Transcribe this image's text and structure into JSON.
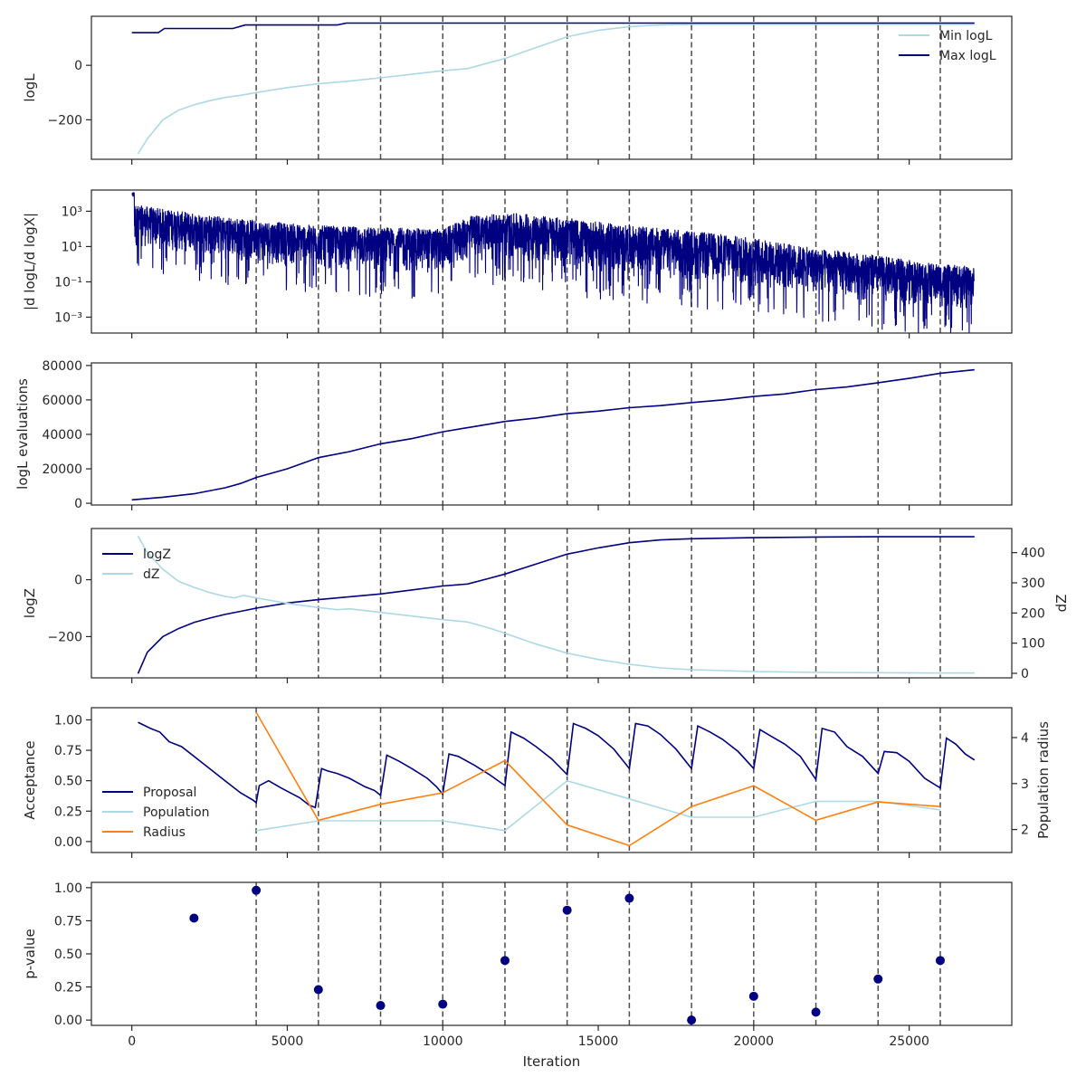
{
  "colors": {
    "navy": "#000080",
    "lightblue": "#add8e6",
    "orange": "#ff7f0e",
    "vline": "#4d4d4d"
  },
  "shared_x": {
    "label": "Iteration",
    "lim": [
      -1300,
      28300
    ],
    "ticks": [
      0,
      5000,
      10000,
      15000,
      20000,
      25000
    ],
    "tick_labels": [
      "0",
      "5000",
      "10000",
      "15000",
      "20000",
      "25000"
    ]
  },
  "vertical_lines": [
    4000,
    6000,
    8000,
    10000,
    12000,
    14000,
    16000,
    18000,
    20000,
    22000,
    24000,
    26000
  ],
  "chart_data": [
    {
      "type": "line",
      "ylabel": "logL",
      "ylim": [
        -345,
        180
      ],
      "yticks": [
        -200,
        0
      ],
      "ytick_labels": [
        "−200",
        "0"
      ],
      "legend": "top-right",
      "series": [
        {
          "name": "Min logL",
          "color": "#add8e6",
          "x": [
            200,
            500,
            1000,
            1500,
            2000,
            2500,
            3000,
            3500,
            4000,
            5000,
            6000,
            7000,
            8000,
            9000,
            10000,
            10800,
            11500,
            12000,
            13000,
            14000,
            15000,
            16000,
            17000,
            18000,
            20000,
            22000,
            24000,
            26000,
            27100
          ],
          "y": [
            -325,
            -270,
            -200,
            -165,
            -145,
            -130,
            -118,
            -110,
            -100,
            -82,
            -68,
            -58,
            -46,
            -33,
            -20,
            -12,
            10,
            25,
            65,
            105,
            128,
            142,
            148,
            150,
            150,
            150,
            150,
            150,
            150
          ]
        },
        {
          "name": "Max logL",
          "color": "#000080",
          "x": [
            0,
            850,
            1050,
            3250,
            3650,
            6600,
            6900,
            27100
          ],
          "y": [
            120,
            120,
            135,
            135,
            148,
            148,
            155,
            155
          ]
        }
      ]
    },
    {
      "type": "line",
      "ylabel": "|d logL/d logX|",
      "yscale": "log",
      "ylim": [
        -3.9,
        4.2
      ],
      "yticks": [
        -3,
        -1,
        1,
        3
      ],
      "ytick_labels": [
        "10⁻³",
        "10⁻¹",
        "10¹",
        "10³"
      ],
      "series": [
        {
          "name": "",
          "color": "#000080",
          "band_x": [
            0,
            2000,
            4000,
            6000,
            8000,
            10000,
            11000,
            12500,
            14000,
            16000,
            18000,
            20000,
            22000,
            24000,
            26000,
            27100
          ],
          "band_upper_log10": [
            3.4,
            2.9,
            2.5,
            2.2,
            2.1,
            2.0,
            2.8,
            2.9,
            2.6,
            2.2,
            1.9,
            1.5,
            0.9,
            0.5,
            0.0,
            -0.1
          ],
          "band_lower_log10": [
            1.0,
            0.5,
            0.0,
            -0.3,
            -0.5,
            -0.6,
            0.2,
            0.1,
            -0.3,
            -0.7,
            -1.0,
            -1.4,
            -1.8,
            -2.2,
            -2.6,
            -2.7
          ]
        }
      ]
    },
    {
      "type": "line",
      "ylabel": "logL evaluations",
      "ylim": [
        -1000,
        81500
      ],
      "yticks": [
        0,
        20000,
        40000,
        60000,
        80000
      ],
      "ytick_labels": [
        "0",
        "20000",
        "40000",
        "60000",
        "80000"
      ],
      "series": [
        {
          "name": "",
          "color": "#000080",
          "x": [
            0,
            1000,
            2000,
            3000,
            3500,
            4000,
            5000,
            6000,
            7000,
            8000,
            9000,
            10000,
            11000,
            12000,
            13000,
            14000,
            15000,
            16000,
            17000,
            18000,
            19000,
            20000,
            21000,
            22000,
            23000,
            24000,
            25000,
            26000,
            27100
          ],
          "y": [
            2000,
            3500,
            5500,
            9000,
            11500,
            15000,
            20000,
            26500,
            30000,
            34500,
            37500,
            41500,
            44500,
            47500,
            49500,
            52000,
            53500,
            55500,
            56700,
            58500,
            60000,
            62000,
            63500,
            66000,
            67500,
            70000,
            72500,
            75500,
            77500
          ]
        }
      ]
    },
    {
      "type": "line",
      "ylabel": "logZ",
      "ylabel_right": "dZ",
      "ylim": [
        -345,
        180
      ],
      "yticks": [
        -200,
        0
      ],
      "ytick_labels": [
        "−200",
        "0"
      ],
      "ylim_right": [
        -15,
        480
      ],
      "yticks_right": [
        0,
        100,
        200,
        300,
        400
      ],
      "ytick_labels_right": [
        "0",
        "100",
        "200",
        "300",
        "400"
      ],
      "legend": "top-left",
      "series": [
        {
          "name": "logZ",
          "color": "#000080",
          "axis": "left",
          "x": [
            200,
            500,
            1000,
            1500,
            2000,
            2500,
            3000,
            3500,
            4000,
            5000,
            6000,
            7000,
            8000,
            9000,
            10000,
            10800,
            11500,
            12000,
            13000,
            14000,
            15000,
            16000,
            17000,
            18000,
            20000,
            22000,
            24000,
            26000,
            27100
          ],
          "y": [
            -330,
            -255,
            -200,
            -172,
            -150,
            -135,
            -122,
            -111,
            -100,
            -82,
            -70,
            -60,
            -50,
            -36,
            -22,
            -15,
            5,
            20,
            55,
            90,
            112,
            130,
            140,
            144,
            148,
            150,
            151,
            151,
            151
          ]
        },
        {
          "name": "dZ",
          "color": "#add8e6",
          "axis": "right",
          "x": [
            200,
            500,
            1000,
            1500,
            2000,
            2500,
            3000,
            3300,
            3600,
            4000,
            5000,
            6000,
            6600,
            7000,
            8000,
            9000,
            10000,
            10800,
            11500,
            12000,
            13000,
            14000,
            15000,
            16000,
            17000,
            18000,
            20000,
            22000,
            24000,
            26000,
            27100
          ],
          "y": [
            455,
            400,
            345,
            305,
            285,
            268,
            255,
            250,
            258,
            250,
            232,
            218,
            211,
            214,
            202,
            190,
            178,
            170,
            150,
            133,
            97,
            67,
            46,
            30,
            18,
            12,
            6,
            3,
            2,
            1,
            1
          ]
        }
      ]
    },
    {
      "type": "line",
      "ylabel": "Acceptance",
      "ylabel_right": "Population radius",
      "ylim": [
        -0.09,
        1.1
      ],
      "yticks": [
        0.0,
        0.25,
        0.5,
        0.75,
        1.0
      ],
      "ytick_labels": [
        "0.00",
        "0.25",
        "0.50",
        "0.75",
        "1.00"
      ],
      "ylim_right": [
        1.5,
        4.65
      ],
      "yticks_right": [
        2,
        3,
        4
      ],
      "ytick_labels_right": [
        "2",
        "3",
        "4"
      ],
      "legend": "lower-left",
      "series": [
        {
          "name": "Proposal",
          "color": "#000080",
          "axis": "left",
          "x": [
            200,
            600,
            900,
            1200,
            1600,
            2000,
            2500,
            3000,
            3500,
            3900,
            4000,
            4100,
            4400,
            4800,
            5400,
            5700,
            5900,
            6100,
            6300,
            6600,
            7000,
            7500,
            7800,
            8000,
            8200,
            8600,
            9000,
            9500,
            9800,
            10000,
            10200,
            10500,
            11000,
            11500,
            12000,
            12200,
            12600,
            13000,
            13500,
            14000,
            14200,
            14600,
            15000,
            15500,
            16000,
            16200,
            16600,
            17000,
            17500,
            18000,
            18200,
            18600,
            19000,
            19500,
            20000,
            20200,
            20600,
            21000,
            21500,
            22000,
            22200,
            22600,
            23000,
            23500,
            24000,
            24200,
            24600,
            25000,
            25500,
            26000,
            26200,
            26500,
            26800,
            27100
          ],
          "y": [
            0.98,
            0.93,
            0.9,
            0.82,
            0.78,
            0.7,
            0.6,
            0.5,
            0.4,
            0.34,
            0.32,
            0.46,
            0.5,
            0.44,
            0.36,
            0.3,
            0.28,
            0.6,
            0.58,
            0.56,
            0.52,
            0.45,
            0.42,
            0.38,
            0.71,
            0.66,
            0.6,
            0.52,
            0.45,
            0.39,
            0.72,
            0.7,
            0.63,
            0.55,
            0.46,
            0.9,
            0.85,
            0.78,
            0.68,
            0.55,
            0.97,
            0.93,
            0.87,
            0.76,
            0.6,
            0.97,
            0.95,
            0.88,
            0.76,
            0.6,
            0.95,
            0.9,
            0.84,
            0.74,
            0.6,
            0.92,
            0.86,
            0.8,
            0.7,
            0.51,
            0.93,
            0.9,
            0.78,
            0.7,
            0.56,
            0.74,
            0.73,
            0.66,
            0.52,
            0.44,
            0.85,
            0.8,
            0.72,
            0.67
          ]
        },
        {
          "name": "Population",
          "color": "#add8e6",
          "axis": "left",
          "x": [
            4000,
            6000,
            8000,
            10000,
            12000,
            14000,
            16000,
            18000,
            20000,
            22000,
            24000,
            26000
          ],
          "y": [
            0.09,
            0.17,
            0.17,
            0.17,
            0.09,
            0.5,
            0.35,
            0.2,
            0.2,
            0.33,
            0.33,
            0.26
          ]
        },
        {
          "name": "Radius",
          "color": "#ff7f0e",
          "axis": "right",
          "x": [
            4000,
            6000,
            8000,
            10000,
            12000,
            14000,
            16000,
            18000,
            20000,
            22000,
            24000,
            26000
          ],
          "y": [
            4.55,
            2.2,
            2.55,
            2.8,
            3.5,
            2.1,
            1.65,
            2.5,
            2.95,
            2.2,
            2.6,
            2.5
          ]
        }
      ]
    },
    {
      "type": "scatter",
      "ylabel": "p-value",
      "xlabel": "Iteration",
      "ylim": [
        -0.04,
        1.04
      ],
      "yticks": [
        0.0,
        0.25,
        0.5,
        0.75,
        1.0
      ],
      "ytick_labels": [
        "0.00",
        "0.25",
        "0.50",
        "0.75",
        "1.00"
      ],
      "series": [
        {
          "name": "",
          "color": "#000080",
          "x": [
            2000,
            4000,
            6000,
            8000,
            10000,
            12000,
            14000,
            16000,
            18000,
            20000,
            22000,
            24000,
            26000
          ],
          "y": [
            0.77,
            0.98,
            0.23,
            0.11,
            0.12,
            0.45,
            0.83,
            0.92,
            0.0,
            0.18,
            0.06,
            0.31,
            0.45
          ]
        }
      ]
    }
  ]
}
